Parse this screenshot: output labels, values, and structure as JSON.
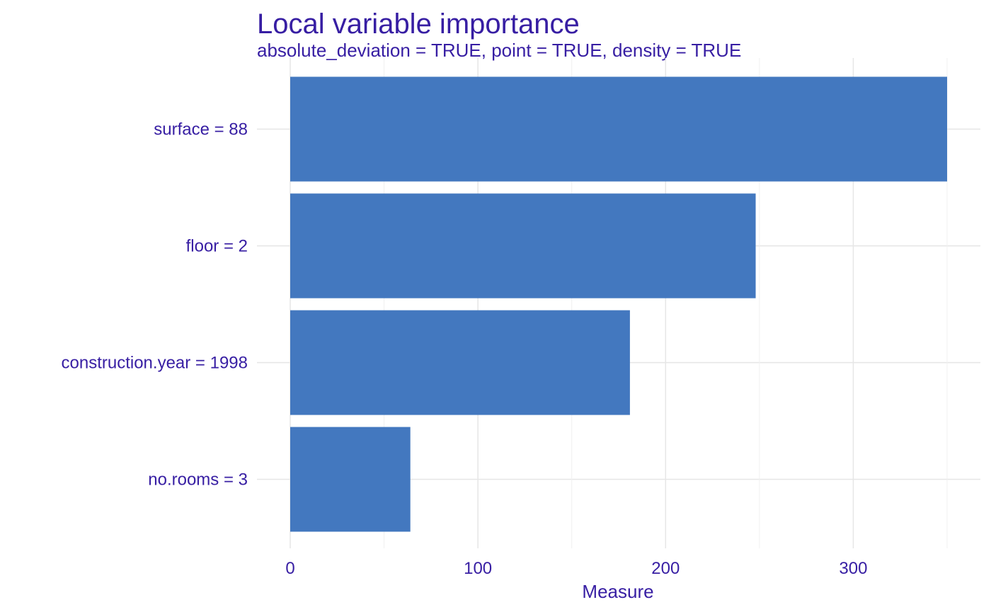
{
  "chart_data": {
    "type": "bar",
    "orientation": "horizontal",
    "title": "Local variable importance",
    "subtitle": "absolute_deviation = TRUE, point = TRUE, density = TRUE",
    "xlabel": "Measure",
    "ylabel": "",
    "categories": [
      "surface = 88",
      "floor = 2",
      "construction.year = 1998",
      "no.rooms = 3"
    ],
    "values": [
      350,
      248,
      181,
      64
    ],
    "xlim": [
      0,
      350
    ],
    "x_ticks": [
      0,
      100,
      200,
      300
    ],
    "grid": true,
    "legend": "none",
    "bar_color": "#4378bf",
    "text_color": "#371ea3",
    "grid_color": "#e6e6e6"
  }
}
